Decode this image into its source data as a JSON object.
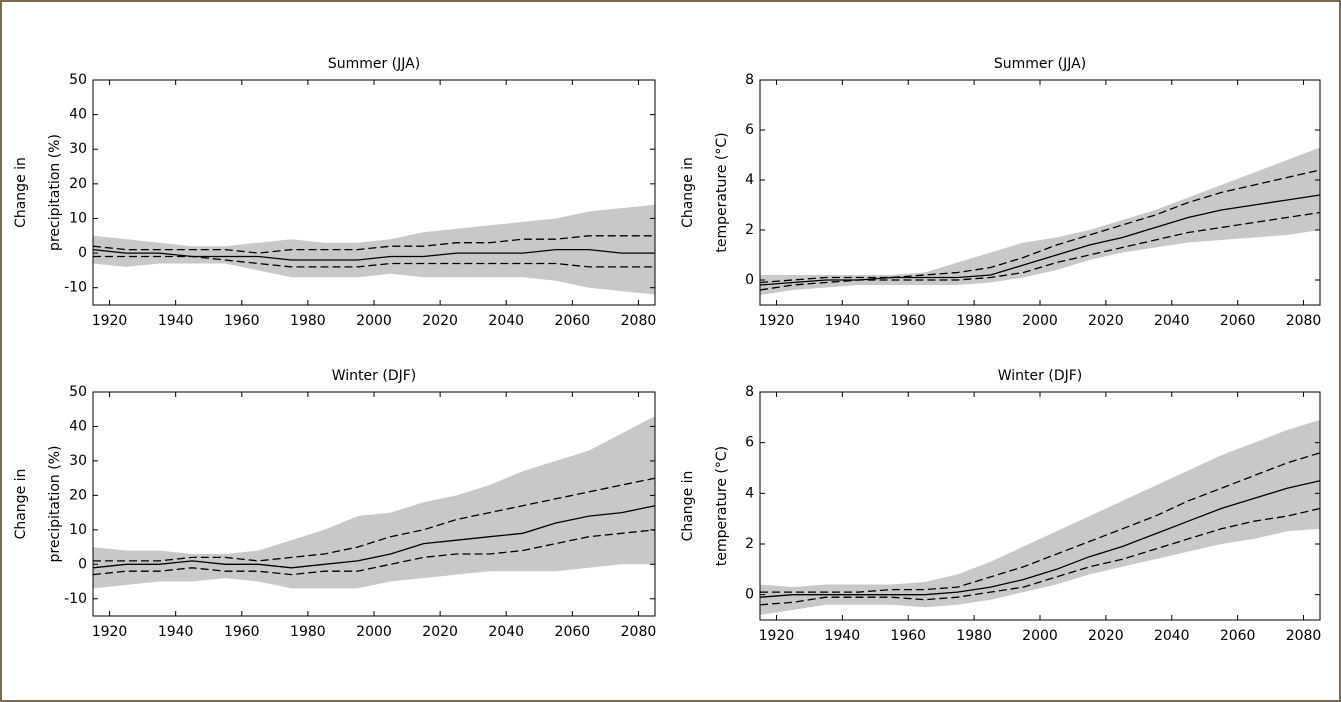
{
  "chart_data": [
    {
      "type": "line",
      "title": "Summer (JJA)",
      "ylabel": [
        "Change in",
        "precipitation (%)"
      ],
      "x": [
        1915,
        1925,
        1935,
        1945,
        1955,
        1965,
        1975,
        1985,
        1995,
        2005,
        2015,
        2025,
        2035,
        2045,
        2055,
        2065,
        2075,
        2085
      ],
      "xlim": [
        1915,
        2085
      ],
      "xticks": [
        1920,
        1940,
        1960,
        1980,
        2000,
        2020,
        2040,
        2060,
        2080
      ],
      "ylim": [
        -15,
        50
      ],
      "yticks": [
        -10,
        0,
        10,
        20,
        30,
        40,
        50
      ],
      "band": {
        "color": "#c8c8c8",
        "upper": [
          5,
          4,
          3,
          2,
          2,
          3,
          4,
          3,
          3,
          4,
          6,
          7,
          8,
          9,
          10,
          12,
          13,
          14
        ],
        "lower": [
          -3,
          -4,
          -3,
          -3,
          -3,
          -5,
          -7,
          -7,
          -7,
          -6,
          -7,
          -7,
          -7,
          -7,
          -8,
          -10,
          -11,
          -12
        ]
      },
      "series": [
        {
          "color": "#000000",
          "dashed": false,
          "values": [
            1,
            0,
            0,
            -1,
            -1,
            -1,
            -2,
            -2,
            -2,
            -1,
            -1,
            0,
            0,
            0,
            1,
            1,
            0,
            0
          ]
        },
        {
          "color": "#000000",
          "dashed": true,
          "values": [
            2,
            1,
            1,
            1,
            1,
            0,
            1,
            1,
            1,
            2,
            2,
            3,
            3,
            4,
            4,
            5,
            5,
            5
          ]
        },
        {
          "color": "#000000",
          "dashed": true,
          "values": [
            -1,
            -1,
            -1,
            -1,
            -2,
            -3,
            -4,
            -4,
            -4,
            -3,
            -3,
            -3,
            -3,
            -3,
            -3,
            -4,
            -4,
            -4
          ]
        }
      ]
    },
    {
      "type": "line",
      "title": "Summer (JJA)",
      "ylabel": [
        "Change in",
        "temperature (°C)"
      ],
      "x": [
        1915,
        1925,
        1935,
        1945,
        1955,
        1965,
        1975,
        1985,
        1995,
        2005,
        2015,
        2025,
        2035,
        2045,
        2055,
        2065,
        2075,
        2085
      ],
      "xlim": [
        1915,
        2085
      ],
      "xticks": [
        1920,
        1940,
        1960,
        1980,
        2000,
        2020,
        2040,
        2060,
        2080
      ],
      "ylim": [
        -1,
        8
      ],
      "yticks": [
        0,
        2,
        4,
        6,
        8
      ],
      "band": {
        "color": "#c8c8c8",
        "upper": [
          0.2,
          0.2,
          0.2,
          0.2,
          0.2,
          0.3,
          0.7,
          1.1,
          1.5,
          1.7,
          2.0,
          2.4,
          2.8,
          3.3,
          3.8,
          4.3,
          4.8,
          5.3
        ],
        "lower": [
          -0.6,
          -0.4,
          -0.3,
          -0.2,
          -0.2,
          -0.2,
          -0.2,
          -0.1,
          0.1,
          0.4,
          0.8,
          1.1,
          1.3,
          1.5,
          1.6,
          1.7,
          1.8,
          2.0
        ]
      },
      "series": [
        {
          "color": "#000000",
          "dashed": false,
          "values": [
            -0.2,
            -0.1,
            0,
            0,
            0.1,
            0.1,
            0.1,
            0.2,
            0.6,
            1.0,
            1.4,
            1.7,
            2.1,
            2.5,
            2.8,
            3.0,
            3.2,
            3.4
          ]
        },
        {
          "color": "#000000",
          "dashed": true,
          "values": [
            -0.1,
            0,
            0.1,
            0.1,
            0.1,
            0.2,
            0.3,
            0.5,
            0.9,
            1.4,
            1.8,
            2.2,
            2.6,
            3.1,
            3.5,
            3.8,
            4.1,
            4.4
          ]
        },
        {
          "color": "#000000",
          "dashed": true,
          "values": [
            -0.4,
            -0.2,
            -0.1,
            0,
            0,
            0,
            0,
            0.1,
            0.3,
            0.7,
            1.0,
            1.3,
            1.6,
            1.9,
            2.1,
            2.3,
            2.5,
            2.7
          ]
        }
      ]
    },
    {
      "type": "line",
      "title": "Winter (DJF)",
      "ylabel": [
        "Change in",
        "precipitation (%)"
      ],
      "x": [
        1915,
        1925,
        1935,
        1945,
        1955,
        1965,
        1975,
        1985,
        1995,
        2005,
        2015,
        2025,
        2035,
        2045,
        2055,
        2065,
        2075,
        2085
      ],
      "xlim": [
        1915,
        2085
      ],
      "xticks": [
        1920,
        1940,
        1960,
        1980,
        2000,
        2020,
        2040,
        2060,
        2080
      ],
      "ylim": [
        -15,
        50
      ],
      "yticks": [
        -10,
        0,
        10,
        20,
        30,
        40,
        50
      ],
      "band": {
        "color": "#c8c8c8",
        "upper": [
          5,
          4,
          4,
          3,
          3,
          4,
          7,
          10,
          14,
          15,
          18,
          20,
          23,
          27,
          30,
          33,
          38,
          43
        ],
        "lower": [
          -7,
          -6,
          -5,
          -5,
          -4,
          -5,
          -7,
          -7,
          -7,
          -5,
          -4,
          -3,
          -2,
          -2,
          -2,
          -1,
          0,
          0
        ]
      },
      "series": [
        {
          "color": "#000000",
          "dashed": false,
          "values": [
            -1,
            0,
            0,
            1,
            0,
            0,
            -1,
            0,
            1,
            3,
            6,
            7,
            8,
            9,
            12,
            14,
            15,
            17
          ]
        },
        {
          "color": "#000000",
          "dashed": true,
          "values": [
            1,
            1,
            1,
            2,
            2,
            1,
            2,
            3,
            5,
            8,
            10,
            13,
            15,
            17,
            19,
            21,
            23,
            25
          ]
        },
        {
          "color": "#000000",
          "dashed": true,
          "values": [
            -3,
            -2,
            -2,
            -1,
            -2,
            -2,
            -3,
            -2,
            -2,
            0,
            2,
            3,
            3,
            4,
            6,
            8,
            9,
            10
          ]
        }
      ]
    },
    {
      "type": "line",
      "title": "Winter (DJF)",
      "ylabel": [
        "Change in",
        "temperature (°C)"
      ],
      "x": [
        1915,
        1925,
        1935,
        1945,
        1955,
        1965,
        1975,
        1985,
        1995,
        2005,
        2015,
        2025,
        2035,
        2045,
        2055,
        2065,
        2075,
        2085
      ],
      "xlim": [
        1915,
        2085
      ],
      "xticks": [
        1920,
        1940,
        1960,
        1980,
        2000,
        2020,
        2040,
        2060,
        2080
      ],
      "ylim": [
        -1,
        8
      ],
      "yticks": [
        0,
        2,
        4,
        6,
        8
      ],
      "band": {
        "color": "#c8c8c8",
        "upper": [
          0.4,
          0.3,
          0.4,
          0.4,
          0.4,
          0.5,
          0.8,
          1.3,
          1.9,
          2.5,
          3.1,
          3.7,
          4.3,
          4.9,
          5.5,
          6.0,
          6.5,
          6.9
        ],
        "lower": [
          -0.8,
          -0.6,
          -0.4,
          -0.4,
          -0.4,
          -0.5,
          -0.4,
          -0.2,
          0.1,
          0.4,
          0.8,
          1.1,
          1.4,
          1.7,
          2.0,
          2.2,
          2.5,
          2.6
        ]
      },
      "series": [
        {
          "color": "#000000",
          "dashed": false,
          "values": [
            -0.1,
            0,
            0,
            0,
            0,
            0,
            0.1,
            0.3,
            0.6,
            1.0,
            1.5,
            1.9,
            2.4,
            2.9,
            3.4,
            3.8,
            4.2,
            4.5
          ]
        },
        {
          "color": "#000000",
          "dashed": true,
          "values": [
            0.1,
            0.1,
            0.1,
            0.1,
            0.2,
            0.2,
            0.3,
            0.7,
            1.1,
            1.6,
            2.1,
            2.6,
            3.1,
            3.7,
            4.2,
            4.7,
            5.2,
            5.6
          ]
        },
        {
          "color": "#000000",
          "dashed": true,
          "values": [
            -0.4,
            -0.3,
            -0.1,
            -0.1,
            -0.1,
            -0.2,
            -0.1,
            0.1,
            0.3,
            0.7,
            1.1,
            1.4,
            1.8,
            2.2,
            2.6,
            2.9,
            3.1,
            3.4
          ]
        }
      ]
    }
  ]
}
